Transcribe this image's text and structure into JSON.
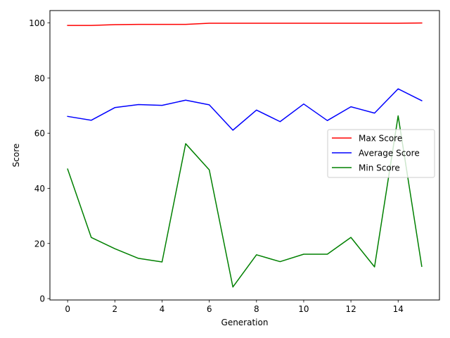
{
  "chart_data": {
    "type": "line",
    "title": "",
    "xlabel": "Generation",
    "ylabel": "Score",
    "xlim": [
      -0.75,
      15.75
    ],
    "ylim": [
      -0.5,
      104.5
    ],
    "xticks": [
      0,
      2,
      4,
      6,
      8,
      10,
      12,
      14
    ],
    "yticks": [
      0,
      20,
      40,
      60,
      80,
      100
    ],
    "grid": false,
    "legend_position": "center-right",
    "x": [
      0,
      1,
      2,
      3,
      4,
      5,
      6,
      7,
      8,
      9,
      10,
      11,
      12,
      13,
      14,
      15
    ],
    "series": [
      {
        "name": "Max Score",
        "color": "#ff0000",
        "values": [
          99.1,
          99.1,
          99.4,
          99.5,
          99.5,
          99.5,
          99.9,
          99.9,
          99.9,
          99.9,
          99.9,
          99.9,
          99.9,
          99.9,
          99.9,
          100.0
        ]
      },
      {
        "name": "Average Score",
        "color": "#0000ff",
        "values": [
          66.1,
          64.7,
          69.3,
          70.4,
          70.1,
          72.0,
          70.3,
          61.1,
          68.4,
          64.2,
          70.6,
          64.6,
          69.6,
          67.3,
          76.1,
          71.8
        ]
      },
      {
        "name": "Min Score",
        "color": "#008000",
        "values": [
          47.0,
          22.2,
          18.1,
          14.6,
          13.3,
          56.2,
          46.7,
          4.2,
          15.9,
          13.4,
          16.1,
          16.1,
          22.2,
          11.5,
          66.3,
          11.7
        ]
      }
    ]
  }
}
